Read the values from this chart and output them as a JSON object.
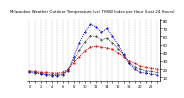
{
  "title": "Milwaukee Weather Outdoor Temperature (vs) THSW Index per Hour (Last 24 Hours)",
  "hours": [
    0,
    1,
    2,
    3,
    4,
    5,
    6,
    7,
    8,
    9,
    10,
    11,
    12,
    13,
    14,
    15,
    16,
    17,
    18,
    19,
    20,
    21,
    22,
    23
  ],
  "temp": [
    18,
    17,
    16,
    16,
    15,
    15,
    16,
    20,
    28,
    35,
    42,
    47,
    48,
    47,
    46,
    44,
    40,
    35,
    30,
    27,
    24,
    22,
    21,
    20
  ],
  "thsw": [
    16,
    15,
    14,
    13,
    12,
    12,
    13,
    18,
    35,
    52,
    65,
    75,
    72,
    65,
    70,
    60,
    50,
    38,
    27,
    20,
    16,
    15,
    14,
    13
  ],
  "black": [
    17,
    16,
    15,
    14,
    13,
    13,
    14,
    19,
    31,
    43,
    53,
    61,
    60,
    56,
    58,
    52,
    45,
    37,
    28,
    23,
    20,
    18,
    17,
    16
  ],
  "temp_color": "#cc0000",
  "thsw_color": "#0000cc",
  "black_color": "#000000",
  "bg_color": "#ffffff",
  "grid_color": "#999999",
  "ylim": [
    5,
    82
  ],
  "ytick_vals": [
    10,
    20,
    30,
    40,
    50,
    60,
    70,
    80
  ],
  "ytick_labels": [
    "10",
    "20",
    "30",
    "40",
    "50",
    "60",
    "70",
    "80"
  ]
}
